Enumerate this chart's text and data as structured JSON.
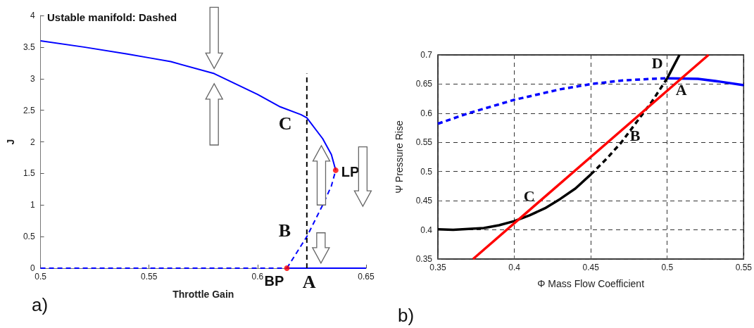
{
  "chart_data": [
    {
      "type": "line",
      "title": "Ustable manifold: Dashed",
      "xlabel": "Throttle Gain",
      "ylabel": "J",
      "xlim": [
        0.5,
        0.65
      ],
      "xticks": [
        0.5,
        0.55,
        0.6,
        0.65
      ],
      "ylim": [
        0,
        4
      ],
      "yticks": [
        0,
        0.5,
        1,
        1.5,
        2,
        2.5,
        3,
        3.5,
        4
      ],
      "grid": false,
      "marker": "none",
      "series": [
        {
          "color": "#0000ff",
          "line_style": "solid",
          "x": [
            0.5,
            0.52,
            0.54,
            0.55,
            0.56,
            0.58,
            0.6,
            0.61,
            0.62,
            0.6227,
            0.63,
            0.634,
            0.636
          ],
          "values": [
            3.6,
            3.5,
            3.39,
            3.33,
            3.27,
            3.08,
            2.75,
            2.56,
            2.43,
            2.38,
            2.05,
            1.8,
            1.55
          ]
        },
        {
          "color": "#0000ff",
          "line_style": "dashed",
          "x": [
            0.6135,
            0.6227,
            0.63,
            0.634,
            0.636
          ],
          "values": [
            0,
            0.5,
            1.0,
            1.3,
            1.55
          ]
        },
        {
          "color": "#0000ff",
          "line_style": "dashed",
          "x": [
            0.5,
            0.6135
          ],
          "values": [
            0,
            0
          ]
        },
        {
          "color": "#0000ff",
          "line_style": "solid",
          "x": [
            0.6135,
            0.65
          ],
          "values": [
            0,
            0
          ]
        },
        {
          "color": "#000000",
          "line_style": "dashed",
          "x": [
            0.6227,
            0.6227
          ],
          "values": [
            0,
            3.08
          ]
        },
        {
          "type": "scatter",
          "marker": "circle",
          "color": "#ff0000",
          "x": [
            0.6135,
            0.636
          ],
          "values": [
            0,
            1.55
          ]
        }
      ],
      "annotations": [
        {
          "text": "C",
          "x": 0.6227,
          "y": 2.38
        },
        {
          "text": "B",
          "x": 0.6227,
          "y": 0.5
        },
        {
          "text": "A",
          "x": 0.6227,
          "y": 0
        },
        {
          "text": "LP",
          "x": 0.636,
          "y": 1.55
        },
        {
          "text": "BP",
          "x": 0.6135,
          "y": 0
        },
        "a)"
      ]
    },
    {
      "type": "line",
      "xlabel": "Φ Mass Flow Coefficient",
      "ylabel": "Ψ Pressure Rise",
      "xlim": [
        0.35,
        0.55
      ],
      "xticks": [
        0.35,
        0.4,
        0.45,
        0.5,
        0.55
      ],
      "ylim": [
        0.35,
        0.7
      ],
      "yticks": [
        0.35,
        0.4,
        0.45,
        0.5,
        0.55,
        0.6,
        0.65,
        0.7
      ],
      "grid": true,
      "marker": "none",
      "series": [
        {
          "color": "#0000ff",
          "line_style": "dashed",
          "x": [
            0.35,
            0.37,
            0.4,
            0.43,
            0.45,
            0.47,
            0.49,
            0.5
          ],
          "values": [
            0.582,
            0.6,
            0.623,
            0.641,
            0.65,
            0.656,
            0.659,
            0.66
          ]
        },
        {
          "color": "#0000ff",
          "line_style": "solid",
          "x": [
            0.5,
            0.52,
            0.535,
            0.55
          ],
          "values": [
            0.66,
            0.659,
            0.654,
            0.648
          ]
        },
        {
          "color": "#000000",
          "line_style": "solid",
          "x": [
            0.35,
            0.36,
            0.38,
            0.39,
            0.4,
            0.41,
            0.42,
            0.43,
            0.44,
            0.45
          ],
          "values": [
            0.401,
            0.4,
            0.403,
            0.408,
            0.415,
            0.425,
            0.437,
            0.453,
            0.471,
            0.495
          ]
        },
        {
          "color": "#000000",
          "line_style": "dashed",
          "x": [
            0.45,
            0.46,
            0.47,
            0.48,
            0.49,
            0.5
          ],
          "values": [
            0.495,
            0.521,
            0.55,
            0.585,
            0.62,
            0.66
          ]
        },
        {
          "color": "#000000",
          "line_style": "solid",
          "x": [
            0.5,
            0.508
          ],
          "values": [
            0.66,
            0.7
          ]
        },
        {
          "color": "#ff0000",
          "line_style": "solid",
          "x": [
            0.373,
            0.527
          ],
          "values": [
            0.35,
            0.7
          ]
        }
      ],
      "annotations": [
        {
          "text": "A",
          "x": 0.511,
          "y": 0.66
        },
        {
          "text": "B",
          "x": 0.477,
          "y": 0.577
        },
        {
          "text": "C",
          "x": 0.413,
          "y": 0.43
        },
        {
          "text": "D",
          "x": 0.5,
          "y": 0.66
        },
        "b)"
      ]
    }
  ]
}
